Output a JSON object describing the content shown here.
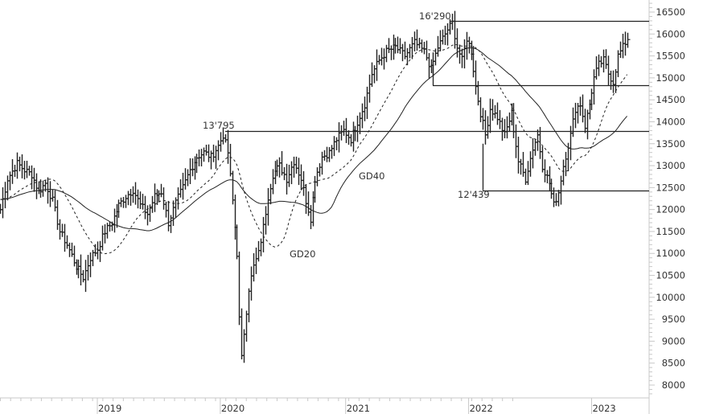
{
  "chart_data": {
    "type": "ohlc",
    "title": "",
    "xlabel": "",
    "ylabel": "",
    "ylim": [
      7700,
      16700
    ],
    "grid": false,
    "legend": "none",
    "y_ticks": [
      16500,
      16000,
      15500,
      15000,
      14500,
      14000,
      13500,
      13000,
      12500,
      12000,
      11500,
      11000,
      10500,
      10000,
      9500,
      9000,
      8500,
      8000
    ],
    "x_ticks": [
      "2019",
      "2020",
      "2021",
      "2022",
      "2023"
    ],
    "x_tick_weeks": [
      0,
      52,
      105,
      157,
      209
    ],
    "start_week": -41,
    "end_week": 172,
    "series": [
      {
        "name": "Weekly price (waypoints, week offset from Jan 2019 : close)",
        "waypoints": [
          [
            -41,
            12000
          ],
          [
            -38,
            12700
          ],
          [
            -34,
            13050
          ],
          [
            -31,
            12900
          ],
          [
            -28,
            12800
          ],
          [
            -25,
            12400
          ],
          [
            -22,
            12600
          ],
          [
            -19,
            12200
          ],
          [
            -16,
            11500
          ],
          [
            -13,
            11200
          ],
          [
            -9,
            10700
          ],
          [
            -6,
            10450
          ],
          [
            -3,
            10900
          ],
          [
            0,
            11100
          ],
          [
            3,
            11500
          ],
          [
            6,
            11700
          ],
          [
            9,
            12100
          ],
          [
            12,
            12300
          ],
          [
            15,
            12450
          ],
          [
            18,
            12100
          ],
          [
            21,
            11900
          ],
          [
            24,
            12300
          ],
          [
            27,
            12400
          ],
          [
            30,
            11700
          ],
          [
            33,
            12150
          ],
          [
            36,
            12500
          ],
          [
            39,
            12900
          ],
          [
            42,
            13200
          ],
          [
            45,
            13300
          ],
          [
            48,
            13200
          ],
          [
            51,
            13450
          ],
          [
            53,
            13700
          ],
          [
            55,
            13300
          ],
          [
            57,
            12200
          ],
          [
            59,
            11000
          ],
          [
            60,
            9500
          ],
          [
            61,
            8600
          ],
          [
            62,
            9200
          ],
          [
            64,
            10200
          ],
          [
            66,
            10700
          ],
          [
            68,
            11000
          ],
          [
            70,
            11600
          ],
          [
            72,
            12300
          ],
          [
            74,
            12800
          ],
          [
            77,
            13000
          ],
          [
            80,
            12700
          ],
          [
            83,
            13100
          ],
          [
            86,
            12700
          ],
          [
            88,
            12200
          ],
          [
            90,
            11800
          ],
          [
            92,
            12700
          ],
          [
            95,
            13200
          ],
          [
            98,
            13300
          ],
          [
            101,
            13600
          ],
          [
            104,
            13800
          ],
          [
            107,
            13600
          ],
          [
            110,
            14000
          ],
          [
            113,
            14400
          ],
          [
            116,
            15100
          ],
          [
            119,
            15400
          ],
          [
            122,
            15600
          ],
          [
            126,
            15700
          ],
          [
            130,
            15500
          ],
          [
            134,
            15800
          ],
          [
            138,
            15600
          ],
          [
            141,
            15200
          ],
          [
            144,
            15700
          ],
          [
            148,
            16100
          ],
          [
            150,
            16250
          ],
          [
            152,
            15700
          ],
          [
            154,
            15400
          ],
          [
            156,
            15900
          ],
          [
            158,
            15600
          ],
          [
            160,
            14800
          ],
          [
            162,
            14200
          ],
          [
            164,
            13700
          ],
          [
            166,
            14300
          ],
          [
            169,
            14100
          ],
          [
            172,
            13700
          ],
          [
            175,
            14200
          ],
          [
            178,
            13100
          ],
          [
            181,
            12700
          ],
          [
            184,
            13400
          ],
          [
            186,
            13700
          ],
          [
            188,
            13000
          ],
          [
            191,
            12600
          ],
          [
            193,
            12100
          ],
          [
            195,
            12400
          ],
          [
            197,
            13000
          ],
          [
            200,
            13700
          ],
          [
            202,
            14300
          ],
          [
            204,
            14400
          ],
          [
            206,
            13900
          ],
          [
            208,
            14400
          ],
          [
            210,
            15000
          ],
          [
            212,
            15300
          ],
          [
            214,
            15400
          ],
          [
            216,
            15100
          ],
          [
            218,
            14900
          ],
          [
            220,
            15500
          ],
          [
            222,
            15700
          ],
          [
            224,
            15900
          ]
        ]
      },
      {
        "name": "GD20",
        "style": "dashed",
        "period": 20
      },
      {
        "name": "GD40",
        "style": "solid",
        "period": 40
      }
    ],
    "horizontal_levels": [
      {
        "label": "16'290",
        "value": 16290,
        "from_week": 149,
        "to_week": "end"
      },
      {
        "label": "13'795",
        "value": 13795,
        "from_week": 54,
        "to_week": "end"
      },
      {
        "label": "12'439",
        "value": 12439,
        "from_week": 163,
        "to_week": "end"
      },
      {
        "label": "",
        "value": 14830,
        "from_week": 142,
        "to_week": "end"
      }
    ],
    "annotations": [
      {
        "text": "16'290",
        "near_week": 141,
        "value": 16290
      },
      {
        "text": "13'795",
        "near_week": 44,
        "value": 13795
      },
      {
        "text": "12'439",
        "near_week": 152,
        "value": 12439
      },
      {
        "text": "GD40",
        "near_week": 111,
        "value": 13000
      },
      {
        "text": "GD20",
        "near_week": 81,
        "value": 11000
      }
    ]
  },
  "axis": {
    "y_labels": [
      "16500",
      "16000",
      "15500",
      "15000",
      "14500",
      "14000",
      "13500",
      "13000",
      "12500",
      "12000",
      "11500",
      "11000",
      "10500",
      "10000",
      "9500",
      "9000",
      "8500",
      "8000"
    ],
    "x_labels": [
      "2019",
      "2020",
      "2021",
      "2022",
      "2023"
    ]
  },
  "labels": {
    "level_high": "16'290",
    "level_mid": "13'795",
    "level_low": "12'439",
    "ma_long": "GD40",
    "ma_short": "GD20"
  }
}
